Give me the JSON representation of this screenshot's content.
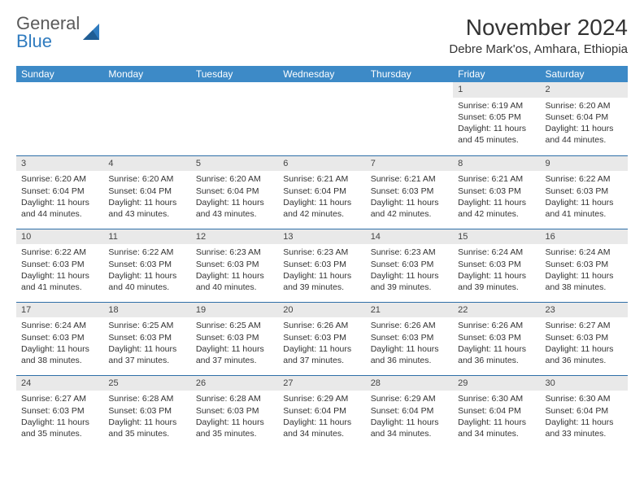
{
  "brand": {
    "line1": "General",
    "line2": "Blue"
  },
  "colors": {
    "header_bg": "#3d8ac7",
    "row_border": "#2f6fa8",
    "daynum_bg": "#e9e9e9",
    "logo_gray": "#5a5a5a",
    "logo_blue": "#2f7bbf",
    "text": "#333333"
  },
  "title": "November 2024",
  "location": "Debre Mark'os, Amhara, Ethiopia",
  "weekdays": [
    "Sunday",
    "Monday",
    "Tuesday",
    "Wednesday",
    "Thursday",
    "Friday",
    "Saturday"
  ],
  "layout": {
    "first_weekday_index": 5,
    "days_in_month": 30
  },
  "days": {
    "1": {
      "sunrise": "6:19 AM",
      "sunset": "6:05 PM",
      "daylight": "11 hours and 45 minutes."
    },
    "2": {
      "sunrise": "6:20 AM",
      "sunset": "6:04 PM",
      "daylight": "11 hours and 44 minutes."
    },
    "3": {
      "sunrise": "6:20 AM",
      "sunset": "6:04 PM",
      "daylight": "11 hours and 44 minutes."
    },
    "4": {
      "sunrise": "6:20 AM",
      "sunset": "6:04 PM",
      "daylight": "11 hours and 43 minutes."
    },
    "5": {
      "sunrise": "6:20 AM",
      "sunset": "6:04 PM",
      "daylight": "11 hours and 43 minutes."
    },
    "6": {
      "sunrise": "6:21 AM",
      "sunset": "6:04 PM",
      "daylight": "11 hours and 42 minutes."
    },
    "7": {
      "sunrise": "6:21 AM",
      "sunset": "6:03 PM",
      "daylight": "11 hours and 42 minutes."
    },
    "8": {
      "sunrise": "6:21 AM",
      "sunset": "6:03 PM",
      "daylight": "11 hours and 42 minutes."
    },
    "9": {
      "sunrise": "6:22 AM",
      "sunset": "6:03 PM",
      "daylight": "11 hours and 41 minutes."
    },
    "10": {
      "sunrise": "6:22 AM",
      "sunset": "6:03 PM",
      "daylight": "11 hours and 41 minutes."
    },
    "11": {
      "sunrise": "6:22 AM",
      "sunset": "6:03 PM",
      "daylight": "11 hours and 40 minutes."
    },
    "12": {
      "sunrise": "6:23 AM",
      "sunset": "6:03 PM",
      "daylight": "11 hours and 40 minutes."
    },
    "13": {
      "sunrise": "6:23 AM",
      "sunset": "6:03 PM",
      "daylight": "11 hours and 39 minutes."
    },
    "14": {
      "sunrise": "6:23 AM",
      "sunset": "6:03 PM",
      "daylight": "11 hours and 39 minutes."
    },
    "15": {
      "sunrise": "6:24 AM",
      "sunset": "6:03 PM",
      "daylight": "11 hours and 39 minutes."
    },
    "16": {
      "sunrise": "6:24 AM",
      "sunset": "6:03 PM",
      "daylight": "11 hours and 38 minutes."
    },
    "17": {
      "sunrise": "6:24 AM",
      "sunset": "6:03 PM",
      "daylight": "11 hours and 38 minutes."
    },
    "18": {
      "sunrise": "6:25 AM",
      "sunset": "6:03 PM",
      "daylight": "11 hours and 37 minutes."
    },
    "19": {
      "sunrise": "6:25 AM",
      "sunset": "6:03 PM",
      "daylight": "11 hours and 37 minutes."
    },
    "20": {
      "sunrise": "6:26 AM",
      "sunset": "6:03 PM",
      "daylight": "11 hours and 37 minutes."
    },
    "21": {
      "sunrise": "6:26 AM",
      "sunset": "6:03 PM",
      "daylight": "11 hours and 36 minutes."
    },
    "22": {
      "sunrise": "6:26 AM",
      "sunset": "6:03 PM",
      "daylight": "11 hours and 36 minutes."
    },
    "23": {
      "sunrise": "6:27 AM",
      "sunset": "6:03 PM",
      "daylight": "11 hours and 36 minutes."
    },
    "24": {
      "sunrise": "6:27 AM",
      "sunset": "6:03 PM",
      "daylight": "11 hours and 35 minutes."
    },
    "25": {
      "sunrise": "6:28 AM",
      "sunset": "6:03 PM",
      "daylight": "11 hours and 35 minutes."
    },
    "26": {
      "sunrise": "6:28 AM",
      "sunset": "6:03 PM",
      "daylight": "11 hours and 35 minutes."
    },
    "27": {
      "sunrise": "6:29 AM",
      "sunset": "6:04 PM",
      "daylight": "11 hours and 34 minutes."
    },
    "28": {
      "sunrise": "6:29 AM",
      "sunset": "6:04 PM",
      "daylight": "11 hours and 34 minutes."
    },
    "29": {
      "sunrise": "6:30 AM",
      "sunset": "6:04 PM",
      "daylight": "11 hours and 34 minutes."
    },
    "30": {
      "sunrise": "6:30 AM",
      "sunset": "6:04 PM",
      "daylight": "11 hours and 33 minutes."
    }
  },
  "labels": {
    "sunrise": "Sunrise: ",
    "sunset": "Sunset: ",
    "daylight": "Daylight: "
  }
}
